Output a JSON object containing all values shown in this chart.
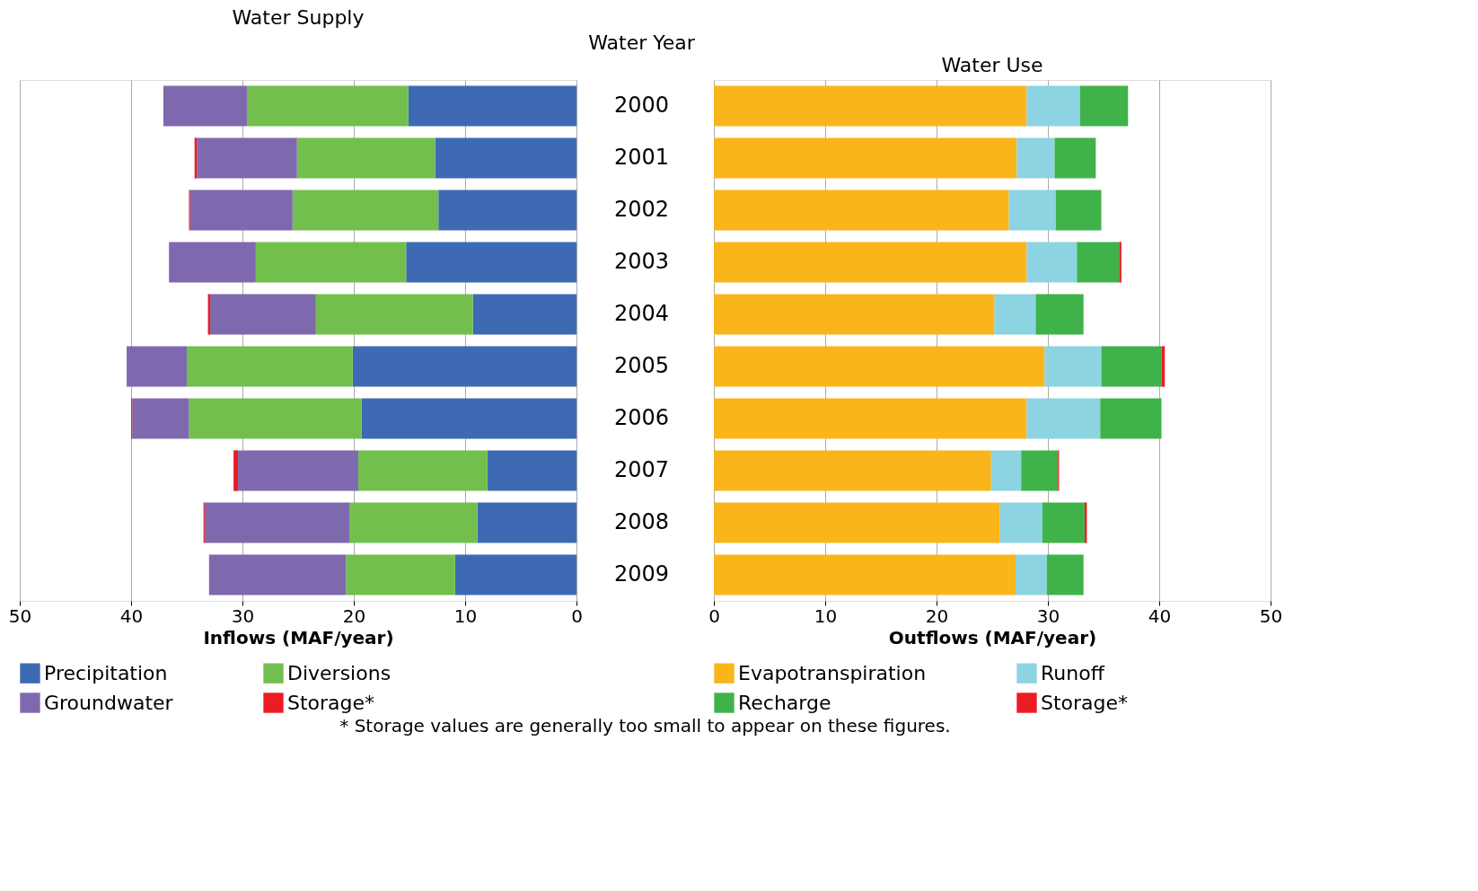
{
  "chart_data": [
    {
      "type": "bar",
      "orientation": "horizontal",
      "stacked": true,
      "title": "Water Supply",
      "xlabel": "Inflows (MAF/year)",
      "ylabel": "Water Year",
      "categories": [
        "2000",
        "2001",
        "2002",
        "2003",
        "2004",
        "2005",
        "2006",
        "2007",
        "2008",
        "2009"
      ],
      "series": [
        {
          "name": "Precipitation",
          "color": "#3e6ab4",
          "values": [
            15.1,
            12.7,
            12.4,
            15.3,
            9.3,
            20.1,
            19.3,
            8.0,
            8.9,
            10.9
          ]
        },
        {
          "name": "Diversions",
          "color": "#72bf4e",
          "values": [
            14.5,
            12.4,
            13.1,
            13.5,
            14.1,
            14.9,
            15.5,
            11.6,
            11.5,
            9.8
          ]
        },
        {
          "name": "Groundwater",
          "color": "#7f69ae",
          "values": [
            7.5,
            9.0,
            9.2,
            7.8,
            9.5,
            5.4,
            5.1,
            10.8,
            13.0,
            12.3
          ]
        },
        {
          "name": "Storage*",
          "color": "#ec1c24",
          "values": [
            0,
            0.2,
            0.1,
            0,
            0.2,
            0,
            0.1,
            0.4,
            0.1,
            0
          ]
        }
      ],
      "xlim": [
        50,
        0
      ],
      "xticks": [
        50,
        40,
        30,
        20,
        10,
        0
      ],
      "grid": "x",
      "legend": "bottom",
      "annotations": [
        "* Storage values are generally too small to appear on these figures."
      ]
    },
    {
      "type": "bar",
      "orientation": "horizontal",
      "stacked": true,
      "title": "Water Use",
      "xlabel": "Outflows (MAF/year)",
      "categories": [
        "2000",
        "2001",
        "2002",
        "2003",
        "2004",
        "2005",
        "2006",
        "2007",
        "2008",
        "2009"
      ],
      "series": [
        {
          "name": "Evapotranspiration",
          "color": "#fab51a",
          "values": [
            28.1,
            27.2,
            26.5,
            28.1,
            25.2,
            29.7,
            28.1,
            24.9,
            25.7,
            27.1
          ]
        },
        {
          "name": "Runoff",
          "color": "#8dd4e2",
          "values": [
            4.8,
            3.4,
            4.2,
            4.5,
            3.7,
            5.1,
            6.6,
            2.7,
            3.8,
            2.8
          ]
        },
        {
          "name": "Recharge",
          "color": "#3fb34a",
          "values": [
            4.3,
            3.7,
            4.1,
            3.8,
            4.3,
            5.4,
            5.5,
            3.3,
            3.8,
            3.3
          ]
        },
        {
          "name": "Storage*",
          "color": "#ec1c24",
          "values": [
            0,
            0,
            0,
            0.2,
            0,
            0.3,
            0,
            0.1,
            0.2,
            0
          ]
        }
      ],
      "xlim": [
        0,
        50
      ],
      "xticks": [
        0,
        10,
        20,
        30,
        40,
        50
      ],
      "grid": "x",
      "legend": "bottom",
      "tick_labels": "x"
    }
  ]
}
